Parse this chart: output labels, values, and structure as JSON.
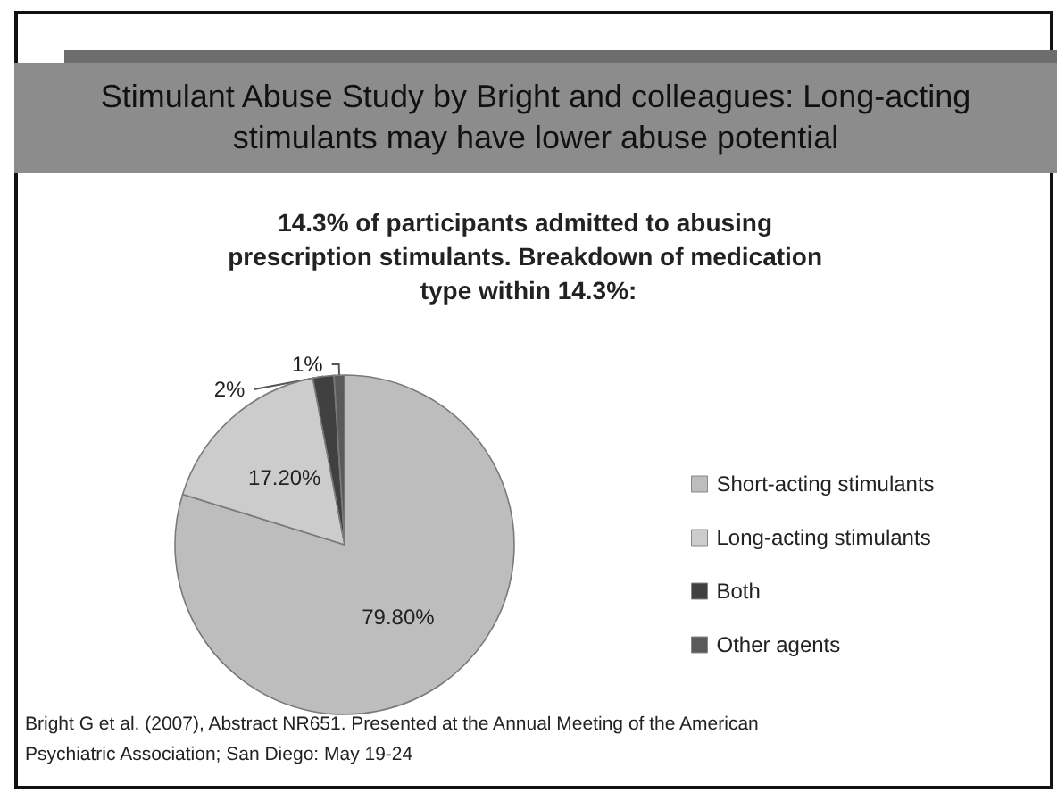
{
  "chart_data": {
    "type": "pie",
    "title": "Stimulant Abuse Study by Bright and colleagues: Long-acting stimulants may have lower abuse potential",
    "subtitle": "14.3% of participants admitted to abusing prescription stimulants. Breakdown of medication type within 14.3%:",
    "categories": [
      "Short-acting stimulants",
      "Long-acting stimulants",
      "Both",
      "Other agents"
    ],
    "values": [
      79.8,
      17.2,
      2,
      1
    ],
    "value_labels": [
      "79.80%",
      "17.20%",
      "2%",
      "1%"
    ],
    "colors": [
      "#bdbdbd",
      "#cccccc",
      "#404040",
      "#5a5a5a"
    ],
    "legend": "right",
    "annotations": [
      "Bright G et al. (2007), Abstract NR651. Presented at the Annual Meeting of the American Psychiatric Association; San Diego: May 19-24"
    ]
  }
}
